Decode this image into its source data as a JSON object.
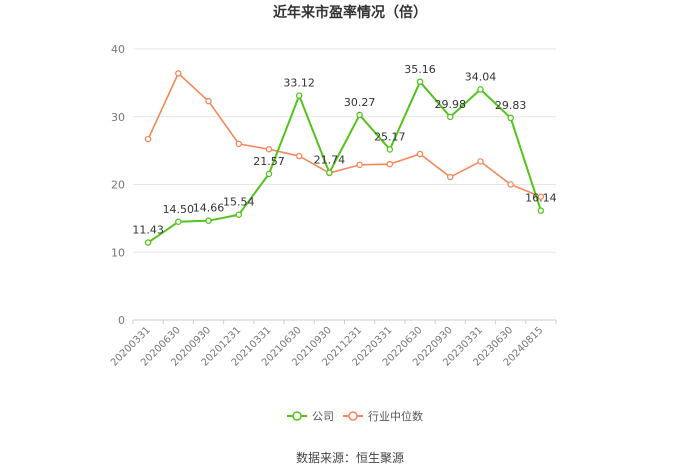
{
  "chart_data": {
    "type": "line",
    "title": "近年来市盈率情况（倍）",
    "categories": [
      "20200331",
      "20200630",
      "20200930",
      "20201231",
      "20210331",
      "20210630",
      "20210930",
      "20211231",
      "20220331",
      "20220630",
      "20220930",
      "20230331",
      "20230630",
      "20240815"
    ],
    "series": [
      {
        "name": "公司",
        "color": "#52c41a",
        "values": [
          11.43,
          14.5,
          14.66,
          15.54,
          21.57,
          33.12,
          21.74,
          30.27,
          25.17,
          35.16,
          29.98,
          34.04,
          29.83,
          16.14
        ],
        "labels": [
          "11.43",
          "14.50",
          "14.66",
          "15.54",
          "21.57",
          "33.12",
          "21.74",
          "30.27",
          "25.17",
          "35.16",
          "29.98",
          "34.04",
          "29.83",
          "16.14"
        ]
      },
      {
        "name": "行业中位数",
        "color": "#f5875a",
        "values": [
          26.7,
          36.4,
          32.3,
          26.0,
          25.2,
          24.2,
          21.7,
          22.9,
          23.0,
          24.5,
          21.1,
          23.4,
          20.0,
          18.2
        ]
      }
    ],
    "ylim": [
      0,
      40
    ],
    "yticks": [
      "0",
      "10",
      "20",
      "30",
      "40"
    ],
    "grid": true,
    "legend_position": "bottom"
  },
  "source_text": "数据来源：恒生聚源"
}
